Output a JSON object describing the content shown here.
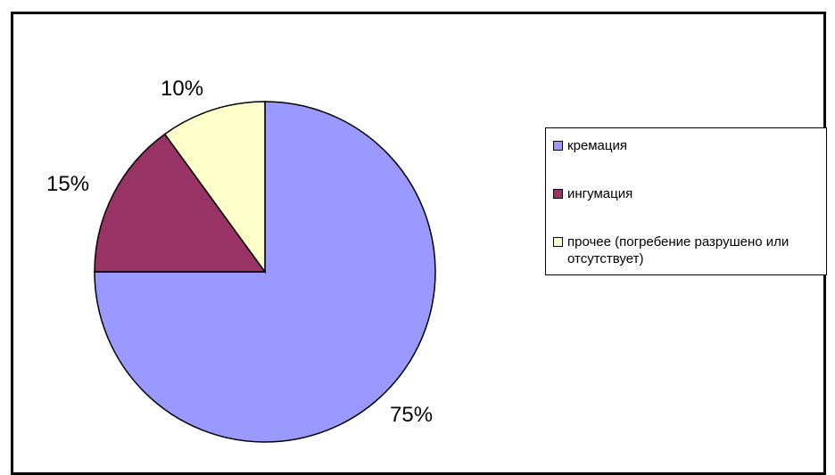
{
  "chart_data": {
    "type": "pie",
    "title": "",
    "start_angle_deg": 0,
    "direction": "clockwise",
    "slices": [
      {
        "name": "кремация",
        "value": 75,
        "label": "75%",
        "color": "#9999ff"
      },
      {
        "name": "ингумация",
        "value": 15,
        "label": "15%",
        "color": "#993366"
      },
      {
        "name": "прочее (погребение разрушено или отсутствует)",
        "value": 10,
        "label": "10%",
        "color": "#ffffcc"
      }
    ],
    "legend": {
      "position": "right",
      "entries": [
        "кремация",
        "ингумация",
        "прочее (погребение разрушено или отсутствует)"
      ]
    }
  }
}
